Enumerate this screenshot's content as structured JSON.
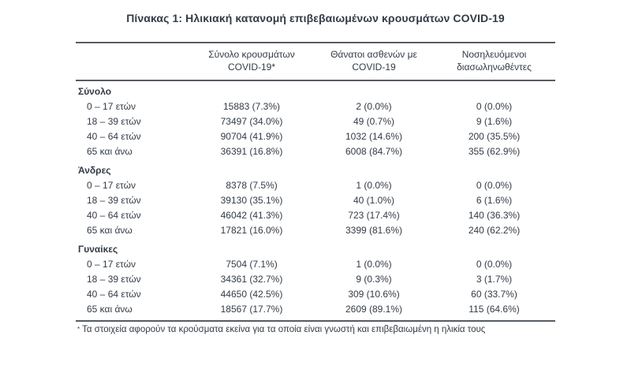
{
  "page": {
    "title": "Πίνακας 1: Ηλικιακή κατανομή επιβεβαιωμένων κρουσμάτων COVID-19"
  },
  "colors": {
    "text": "#333b46",
    "rule": "#565c64",
    "background": "#ffffff"
  },
  "table": {
    "headers": {
      "cases_line1": "Σύνολο κρουσμάτων",
      "cases_line2": "COVID-19*",
      "deaths_line1": "Θάνατοι ασθενών με",
      "deaths_line2": "COVID-19",
      "intubated_line1": "Νοσηλευόμενοι",
      "intubated_line2": "διασωληνωθέντες"
    },
    "sections": [
      {
        "label": "Σύνολο",
        "rows": [
          {
            "age": "0 – 17 ετών",
            "cases": "15883 (7.3%)",
            "deaths": "2 (0.0%)",
            "intubated": "0 (0.0%)"
          },
          {
            "age": "18 – 39 ετών",
            "cases": "73497 (34.0%)",
            "deaths": "49 (0.7%)",
            "intubated": "9 (1.6%)"
          },
          {
            "age": "40 – 64 ετών",
            "cases": "90704 (41.9%)",
            "deaths": "1032 (14.6%)",
            "intubated": "200 (35.5%)"
          },
          {
            "age": "65 και άνω",
            "cases": "36391 (16.8%)",
            "deaths": "6008 (84.7%)",
            "intubated": "355 (62.9%)"
          }
        ]
      },
      {
        "label": "Άνδρες",
        "rows": [
          {
            "age": "0 – 17 ετών",
            "cases": "8378 (7.5%)",
            "deaths": "1 (0.0%)",
            "intubated": "0 (0.0%)"
          },
          {
            "age": "18 – 39 ετών",
            "cases": "39130 (35.1%)",
            "deaths": "40 (1.0%)",
            "intubated": "6 (1.6%)"
          },
          {
            "age": "40 – 64 ετών",
            "cases": "46042 (41.3%)",
            "deaths": "723 (17.4%)",
            "intubated": "140 (36.3%)"
          },
          {
            "age": "65 και άνω",
            "cases": "17821 (16.0%)",
            "deaths": "3399 (81.6%)",
            "intubated": "240 (62.2%)"
          }
        ]
      },
      {
        "label": "Γυναίκες",
        "rows": [
          {
            "age": "0 – 17 ετών",
            "cases": "7504 (7.1%)",
            "deaths": "1 (0.0%)",
            "intubated": "0 (0.0%)"
          },
          {
            "age": "18 – 39 ετών",
            "cases": "34361 (32.7%)",
            "deaths": "9 (0.3%)",
            "intubated": "3 (1.7%)"
          },
          {
            "age": "40 – 64 ετών",
            "cases": "44650 (42.5%)",
            "deaths": "309 (10.6%)",
            "intubated": "60 (33.7%)"
          },
          {
            "age": "65 και άνω",
            "cases": "18567 (17.7%)",
            "deaths": "2609 (89.1%)",
            "intubated": "115 (64.6%)"
          }
        ]
      }
    ],
    "footnote": {
      "marker": "*",
      "text": "Τα στοιχεία αφορούν τα κρούσματα εκείνα για τα οποία είναι γνωστή και επιβεβαιωμένη η ηλικία τους"
    }
  }
}
